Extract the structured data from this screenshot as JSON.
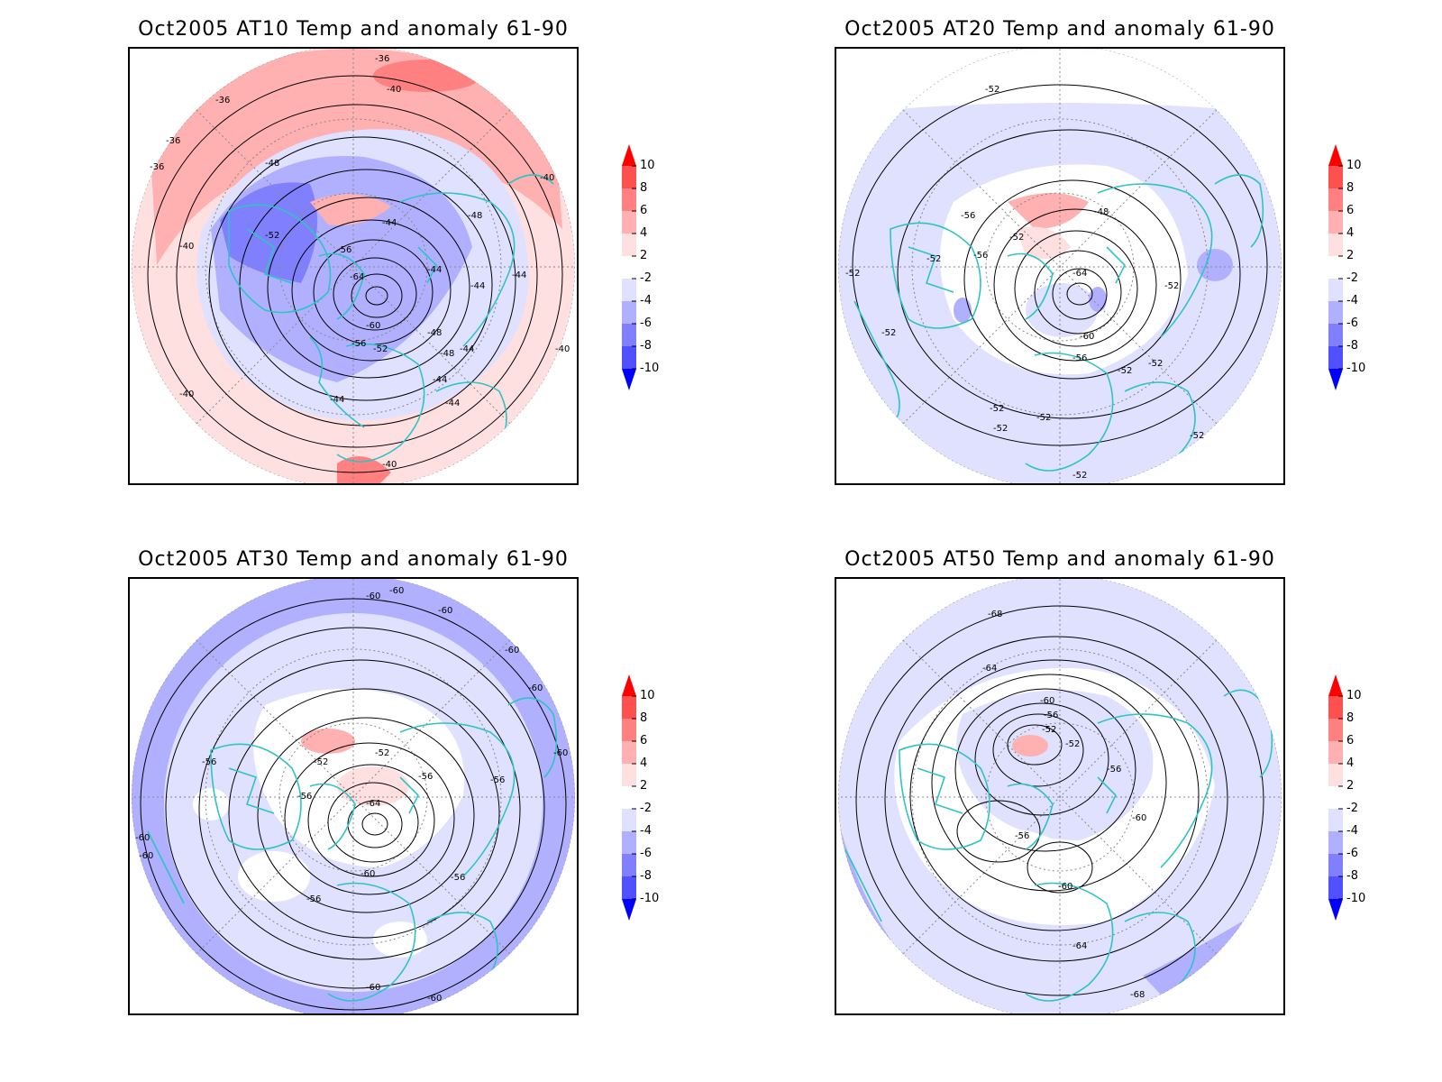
{
  "panels": [
    {
      "title": "Oct2005 AT10 Temp and anomaly 61-90",
      "contour_labels": [
        "-36",
        "-36",
        "-36",
        "-36",
        "-40",
        "-40",
        "-40",
        "-40",
        "-40",
        "-40",
        "-44",
        "-44",
        "-44",
        "-44",
        "-44",
        "-44",
        "-44",
        "-44",
        "-48",
        "-48",
        "-48",
        "-48",
        "-52",
        "-52",
        "-56",
        "-56",
        "-60",
        "-64"
      ]
    },
    {
      "title": "Oct2005 AT20 Temp and anomaly 61-90",
      "contour_labels": [
        "-52",
        "-52",
        "-52",
        "-52",
        "-52",
        "-52",
        "-52",
        "-52",
        "-52",
        "-52",
        "-52",
        "-52",
        "-52",
        "-48",
        "-56",
        "-56",
        "-56",
        "-60",
        "-64"
      ]
    },
    {
      "title": "Oct2005 AT30 Temp and anomaly 61-90",
      "contour_labels": [
        "-60",
        "-60",
        "-60",
        "-60",
        "-60",
        "-60",
        "-60",
        "-60",
        "-60",
        "-60",
        "-60",
        "-56",
        "-56",
        "-56",
        "-56",
        "-56",
        "-56",
        "-52",
        "-52",
        "-64"
      ]
    },
    {
      "title": "Oct2005 AT50 Temp and anomaly 61-90",
      "contour_labels": [
        "-68",
        "-68",
        "-64",
        "-64",
        "-60",
        "-60",
        "-60",
        "-56",
        "-56",
        "-56",
        "-52",
        "-52"
      ]
    }
  ],
  "colorbar": {
    "labels": [
      "10",
      "8",
      "6",
      "4",
      "2",
      "-2",
      "-4",
      "-6",
      "-8",
      "-10"
    ],
    "colors": [
      "#ff0000",
      "#ff5050",
      "#ff8080",
      "#ffb0b0",
      "#ffe0e0",
      "#ffffff",
      "#e0e0ff",
      "#b0b0ff",
      "#8080ff",
      "#5050ff",
      "#0000ff"
    ]
  },
  "colors": {
    "coastline": "#2ec4c4",
    "contour": "#000000",
    "latlon_grid": "#888888"
  }
}
